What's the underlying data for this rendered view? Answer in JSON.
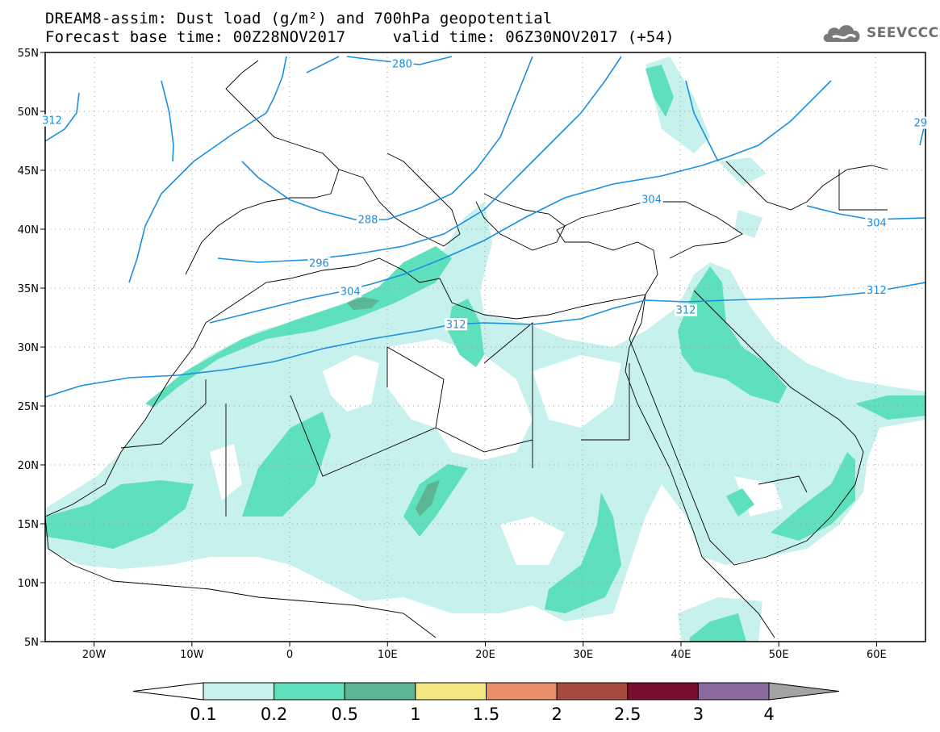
{
  "title_line1": "DREAM8-assim: Dust load (g/m²) and 700hPa geopotential",
  "title_line2": "Forecast base time: 00Z28NOV2017     valid time: 06Z30NOV2017 (+54)",
  "logo": {
    "text": "SEEVCCC",
    "icon": "cloud-icon",
    "color": "#6f6f6f"
  },
  "map": {
    "lon_range": [
      -25,
      65
    ],
    "lat_range": [
      5,
      55
    ],
    "lon_ticks": [
      {
        "value": -20,
        "label": "20W"
      },
      {
        "value": -10,
        "label": "10W"
      },
      {
        "value": 0,
        "label": "0"
      },
      {
        "value": 10,
        "label": "10E"
      },
      {
        "value": 20,
        "label": "20E"
      },
      {
        "value": 30,
        "label": "30E"
      },
      {
        "value": 40,
        "label": "40E"
      },
      {
        "value": 50,
        "label": "50E"
      },
      {
        "value": 60,
        "label": "60E"
      }
    ],
    "lat_ticks": [
      {
        "value": 55,
        "label": "55N"
      },
      {
        "value": 50,
        "label": "50N"
      },
      {
        "value": 45,
        "label": "45N"
      },
      {
        "value": 40,
        "label": "40N"
      },
      {
        "value": 35,
        "label": "35N"
      },
      {
        "value": 30,
        "label": "30N"
      },
      {
        "value": 25,
        "label": "25N"
      },
      {
        "value": 20,
        "label": "20N"
      },
      {
        "value": 15,
        "label": "15N"
      },
      {
        "value": 10,
        "label": "10N"
      },
      {
        "value": 5,
        "label": "5N"
      }
    ],
    "contour_color": "#1a8fe0",
    "contour_labels": [
      {
        "text": "280",
        "lon": 11.5,
        "lat": 54.0
      },
      {
        "text": "312",
        "lon": -24.3,
        "lat": 49.2
      },
      {
        "text": "29",
        "lon": 64.5,
        "lat": 49.0
      },
      {
        "text": "288",
        "lon": 8.0,
        "lat": 40.8
      },
      {
        "text": "296",
        "lon": 3.0,
        "lat": 37.1
      },
      {
        "text": "304",
        "lon": 37.0,
        "lat": 42.5
      },
      {
        "text": "304",
        "lon": 6.2,
        "lat": 34.7
      },
      {
        "text": "304",
        "lon": 60.0,
        "lat": 40.5
      },
      {
        "text": "312",
        "lon": 17.0,
        "lat": 31.9
      },
      {
        "text": "312",
        "lon": 40.5,
        "lat": 33.1
      },
      {
        "text": "312",
        "lon": 60.0,
        "lat": 34.8
      }
    ]
  },
  "colorbar": {
    "ticks": [
      "0.1",
      "0.2",
      "0.5",
      "1",
      "1.5",
      "2",
      "2.5",
      "3",
      "4"
    ],
    "colors": [
      "#c6f1ec",
      "#5fe0bd",
      "#5cb593",
      "#f4e882",
      "#e88f68",
      "#a64b3d",
      "#7a0c2e",
      "#8a6aa0",
      "#a3a3a3"
    ],
    "under_color": "#ffffff"
  }
}
